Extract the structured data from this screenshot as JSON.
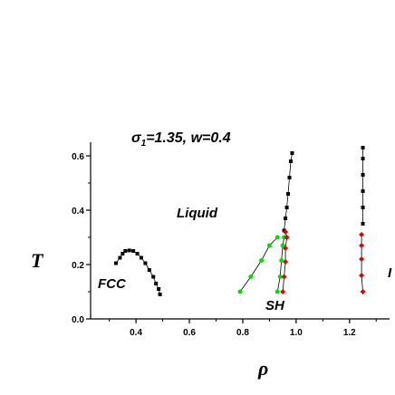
{
  "chart_data": {
    "type": "scatter",
    "title": "σ₁=1.35, w=0.4",
    "title_sym": "σ",
    "title_sub": "1",
    "title_rest": "=1.35, w=0.4",
    "xlabel": "ρ",
    "ylabel": "T",
    "xlim": [
      0.23,
      1.35
    ],
    "ylim": [
      0.0,
      0.65
    ],
    "xticks": [
      0.4,
      0.6,
      0.8,
      1.0,
      1.2
    ],
    "yticks": [
      0.0,
      0.2,
      0.4,
      0.6
    ],
    "xtick_labels": [
      "0.4",
      "0.6",
      "0.8",
      "1.0",
      "1.2"
    ],
    "ytick_labels": [
      "0.0",
      "0.2",
      "0.4",
      "0.6"
    ],
    "annotations": [
      {
        "text": "Liquid",
        "x": 0.57,
        "y": 0.5
      },
      {
        "text": "FCC",
        "x": 0.31,
        "y": 0.13
      },
      {
        "text": "SH",
        "x": 0.915,
        "y": 0.045
      },
      {
        "text": "I",
        "x": 1.32,
        "y": 0.225
      }
    ],
    "colors": {
      "black": "#000000",
      "green": "#00e000",
      "red": "#e00000"
    },
    "series": [
      {
        "marker": "square",
        "color": "#000000",
        "connect": true,
        "points": [
          [
            0.325,
            0.205
          ],
          [
            0.34,
            0.225
          ],
          [
            0.35,
            0.24
          ],
          [
            0.36,
            0.25
          ],
          [
            0.375,
            0.252
          ],
          [
            0.39,
            0.25
          ],
          [
            0.405,
            0.24
          ],
          [
            0.42,
            0.225
          ],
          [
            0.435,
            0.205
          ],
          [
            0.45,
            0.18
          ],
          [
            0.465,
            0.155
          ],
          [
            0.475,
            0.13
          ],
          [
            0.485,
            0.11
          ],
          [
            0.49,
            0.09
          ]
        ]
      },
      {
        "marker": "square",
        "color": "#000000",
        "connect": true,
        "points": [
          [
            0.955,
            0.325
          ],
          [
            0.96,
            0.37
          ],
          [
            0.965,
            0.41
          ],
          [
            0.97,
            0.46
          ],
          [
            0.975,
            0.52
          ],
          [
            0.98,
            0.58
          ],
          [
            0.985,
            0.61
          ]
        ]
      },
      {
        "marker": "square",
        "color": "#000000",
        "connect": true,
        "points": [
          [
            1.25,
            0.35
          ],
          [
            1.25,
            0.41
          ],
          [
            1.25,
            0.47
          ],
          [
            1.25,
            0.53
          ],
          [
            1.25,
            0.59
          ],
          [
            1.25,
            0.63
          ]
        ]
      },
      {
        "marker": "circle",
        "color": "#00e000",
        "connect": true,
        "points": [
          [
            0.79,
            0.1
          ],
          [
            0.83,
            0.155
          ],
          [
            0.87,
            0.215
          ],
          [
            0.9,
            0.27
          ],
          [
            0.93,
            0.3
          ]
        ]
      },
      {
        "marker": "circle",
        "color": "#00e000",
        "connect": true,
        "points": [
          [
            0.93,
            0.1
          ],
          [
            0.94,
            0.155
          ],
          [
            0.945,
            0.215
          ],
          [
            0.95,
            0.27
          ],
          [
            0.955,
            0.3
          ]
        ]
      },
      {
        "marker": "diamond",
        "color": "#e00000",
        "connect": true,
        "points": [
          [
            0.95,
            0.1
          ],
          [
            0.955,
            0.155
          ],
          [
            0.96,
            0.21
          ],
          [
            0.96,
            0.26
          ],
          [
            0.965,
            0.3
          ],
          [
            0.96,
            0.32
          ]
        ]
      },
      {
        "marker": "diamond",
        "color": "#e00000",
        "connect": true,
        "points": [
          [
            1.25,
            0.1
          ],
          [
            1.245,
            0.16
          ],
          [
            1.245,
            0.22
          ],
          [
            1.245,
            0.27
          ],
          [
            1.245,
            0.31
          ]
        ]
      }
    ]
  }
}
